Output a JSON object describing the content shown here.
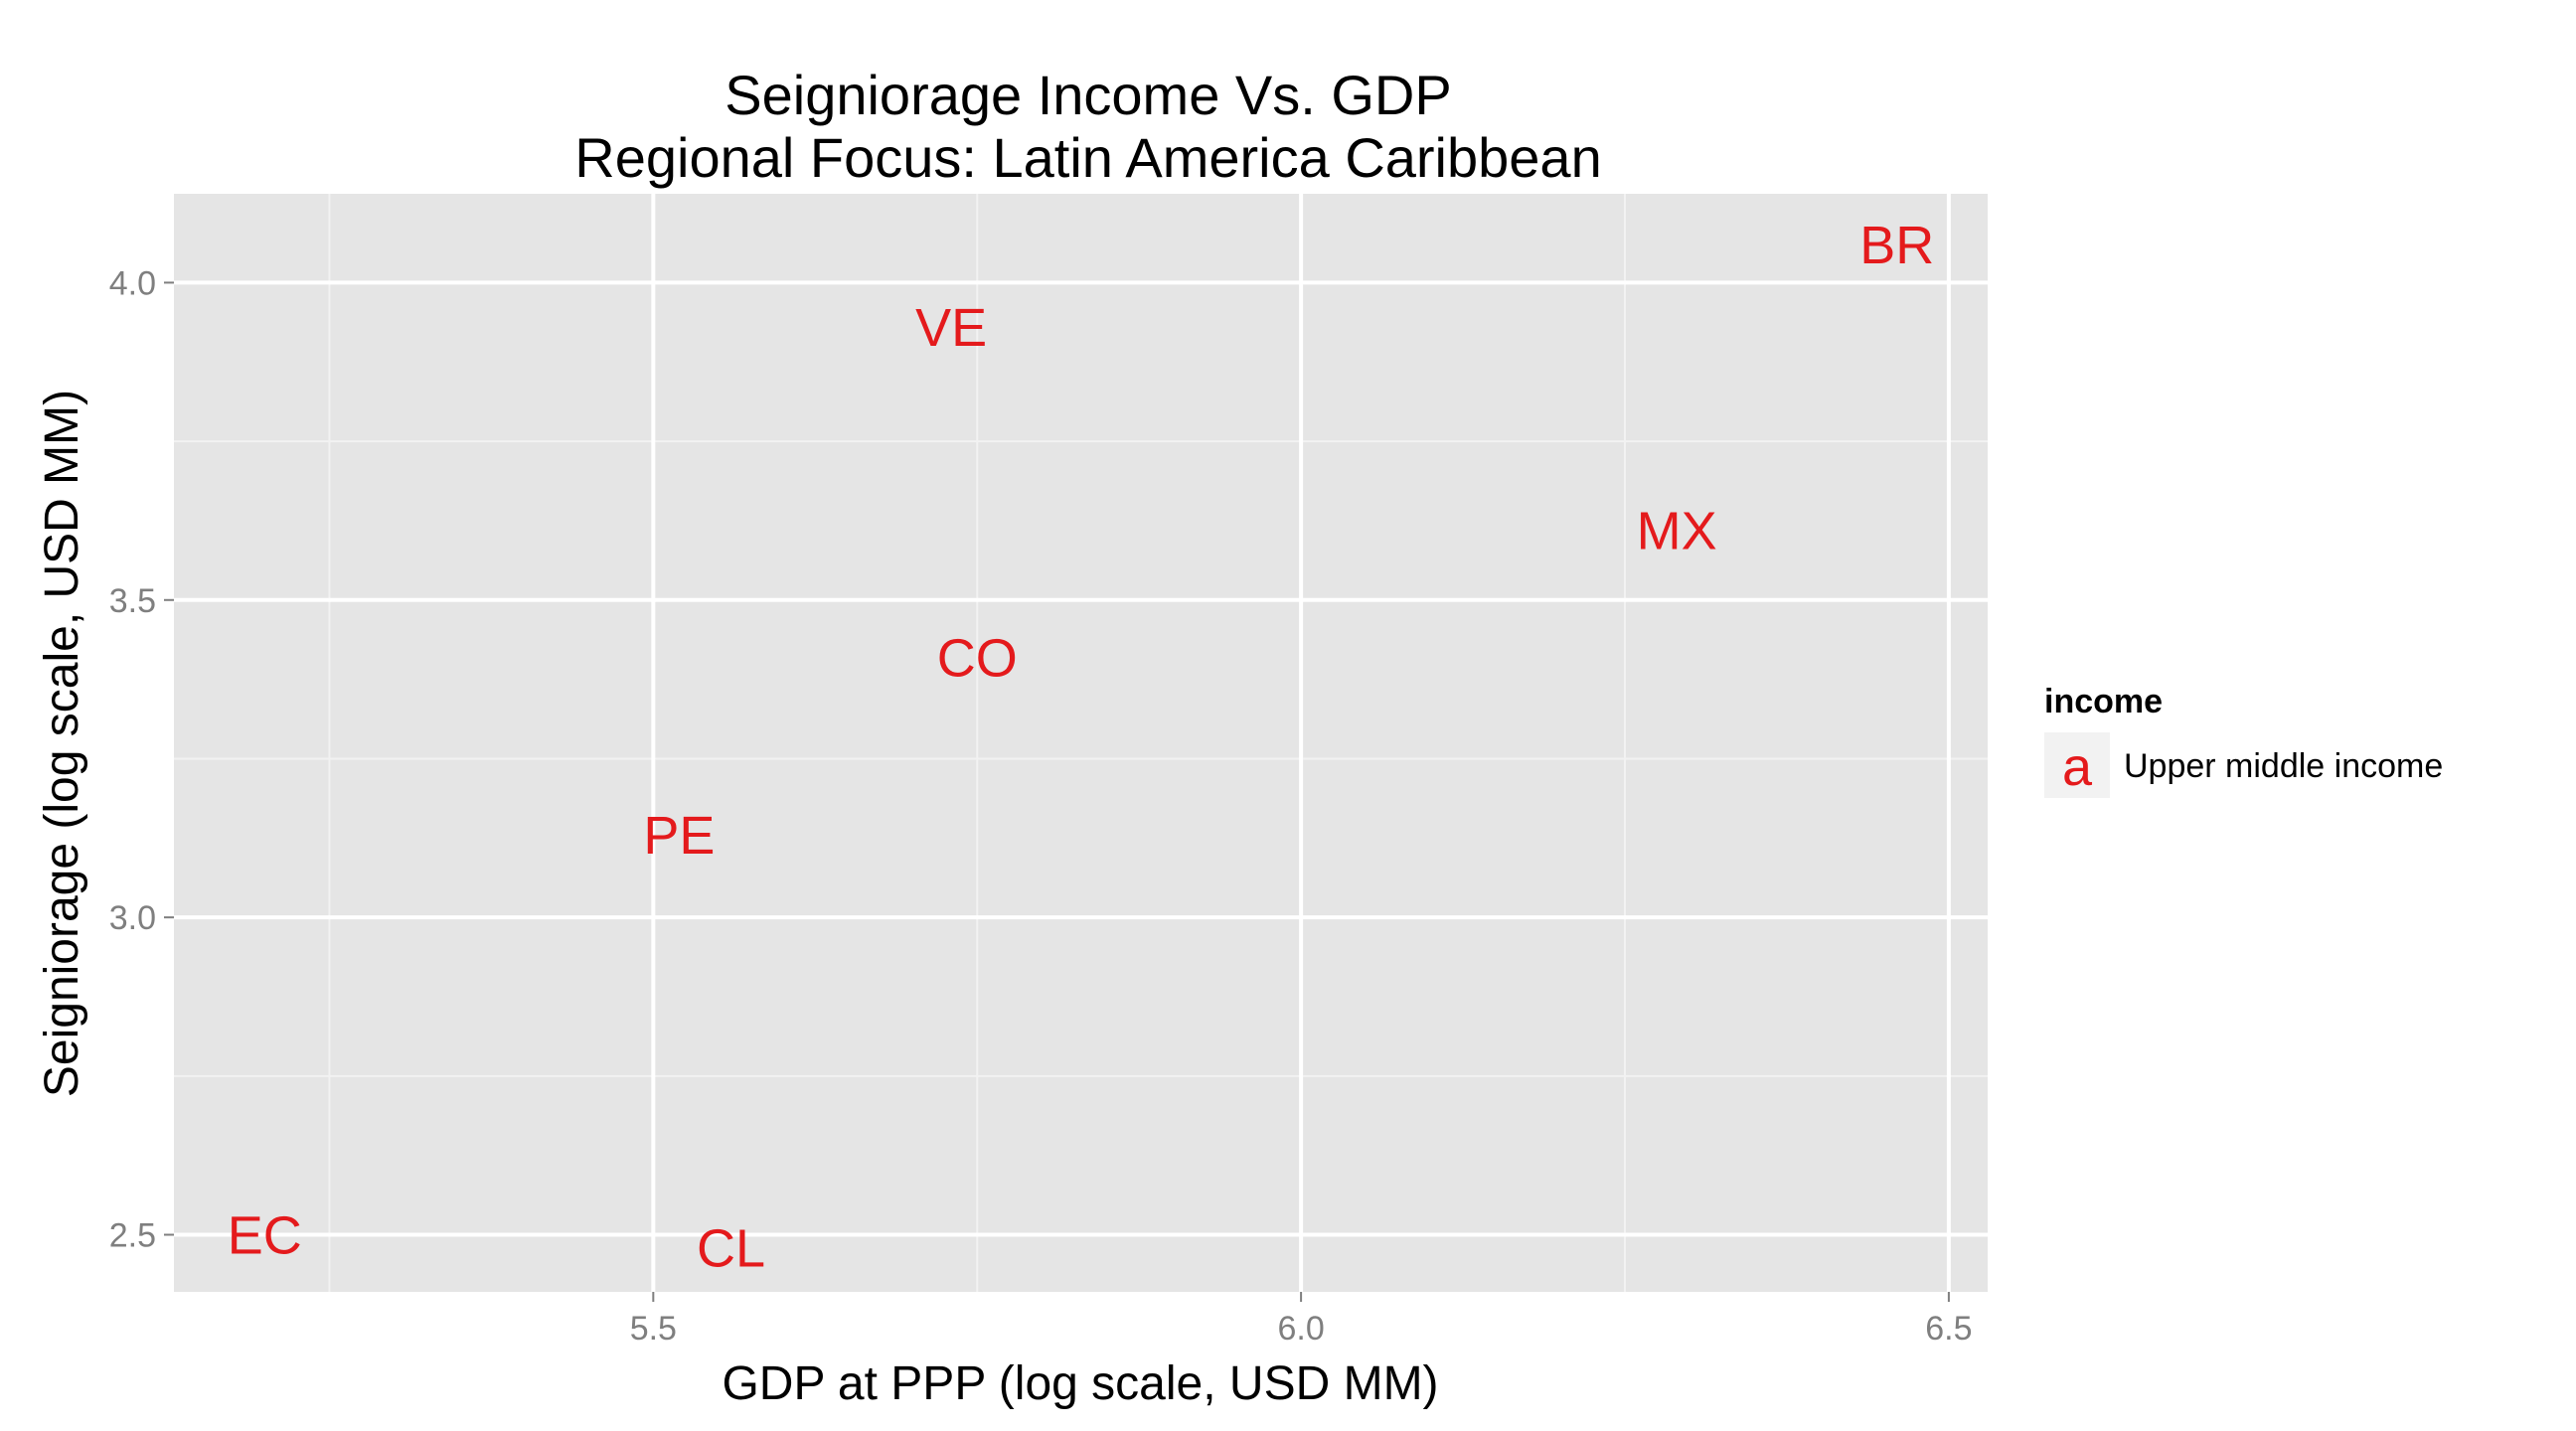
{
  "chart_data": {
    "type": "scatter",
    "title": "Seigniorage Income Vs. GDP",
    "subtitle": "Regional Focus: Latin America Caribbean",
    "xlabel": "GDP at PPP (log scale, USD MM)",
    "ylabel": "Seigniorage (log scale, USD MM)",
    "xlim": [
      5.13,
      6.53
    ],
    "ylim": [
      2.41,
      4.14
    ],
    "x_ticks": [
      5.5,
      6.0,
      6.5
    ],
    "x_tick_labels": [
      "5.5",
      "6.0",
      "6.5"
    ],
    "y_ticks": [
      2.5,
      3.0,
      3.5,
      4.0
    ],
    "y_tick_labels": [
      "2.5",
      "3.0",
      "3.5",
      "4.0"
    ],
    "grid": true,
    "legend_position": "right",
    "legend": {
      "title": "income",
      "key_glyph": "a",
      "entries": [
        {
          "label": "Upper middle income",
          "color": "#e41a1c"
        }
      ]
    },
    "panel_background": "#e5e5e5",
    "label_color": "#e41a1c",
    "points": [
      {
        "label": "BR",
        "x": 6.46,
        "y": 4.06
      },
      {
        "label": "VE",
        "x": 5.73,
        "y": 3.93
      },
      {
        "label": "MX",
        "x": 6.29,
        "y": 3.61
      },
      {
        "label": "CO",
        "x": 5.75,
        "y": 3.41
      },
      {
        "label": "PE",
        "x": 5.52,
        "y": 3.13
      },
      {
        "label": "EC",
        "x": 5.2,
        "y": 2.5
      },
      {
        "label": "CL",
        "x": 5.56,
        "y": 2.48
      }
    ]
  }
}
